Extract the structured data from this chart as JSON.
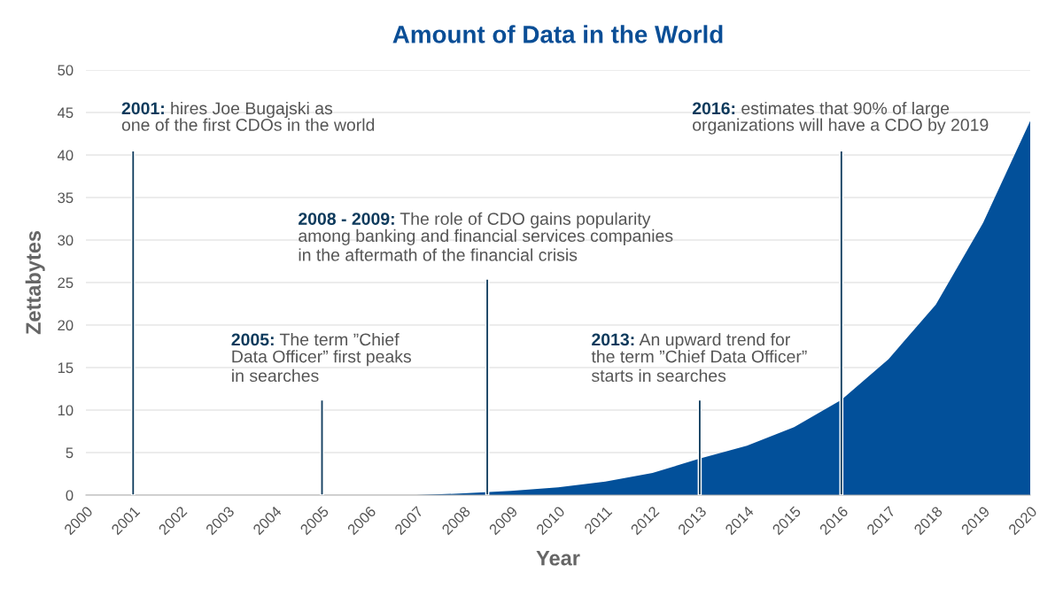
{
  "chart_data": {
    "type": "area",
    "title": "Amount of Data in the World",
    "xlabel": "Year",
    "ylabel": "Zettabytes",
    "series": [
      {
        "color": "#02509a",
        "x": [
          2000,
          2001,
          2002,
          2003,
          2004,
          2005,
          2006,
          2007,
          2008,
          2009,
          2010,
          2011,
          2012,
          2013,
          2014,
          2015,
          2016,
          2017,
          2018,
          2019,
          2020
        ],
        "values": [
          0,
          0,
          0,
          0,
          0,
          0,
          0,
          0,
          0.2,
          0.5,
          0.9,
          1.6,
          2.6,
          4.3,
          5.8,
          8,
          11.2,
          16,
          22.4,
          32,
          44
        ]
      },
      {
        "type": "bar",
        "color": "#0d3a5c",
        "x": [
          2001,
          2005,
          2008.5,
          2013,
          2016
        ],
        "values": [
          40.5,
          11.2,
          25.4,
          11.2,
          40.5
        ]
      }
    ],
    "xlim": [
      2000,
      2020
    ],
    "xticks": [
      2000,
      2001,
      2002,
      2003,
      2004,
      2005,
      2006,
      2007,
      2008,
      2009,
      2010,
      2011,
      2012,
      2013,
      2014,
      2015,
      2016,
      2017,
      2018,
      2019,
      2020
    ],
    "ylim": [
      0,
      50
    ],
    "yticks": [
      0,
      5,
      10,
      15,
      20,
      25,
      30,
      35,
      40,
      45,
      50
    ],
    "grid": "y",
    "annotations": [
      "2001: hires Joe Bugajski as\none of the first CDOs in the world",
      "2005: The term ”Chief\nData Officer” first peaks\nin searches",
      "2008 - 2009: The role of CDO gains popularity\namong banking and financial services companies\nin the aftermath of the financial crisis",
      "2013: An upward trend for\nthe term ”Chief Data Officer”\nstarts in searches",
      "2016: estimates that 90% of large\norganizations will have a CDO by 2019"
    ]
  }
}
